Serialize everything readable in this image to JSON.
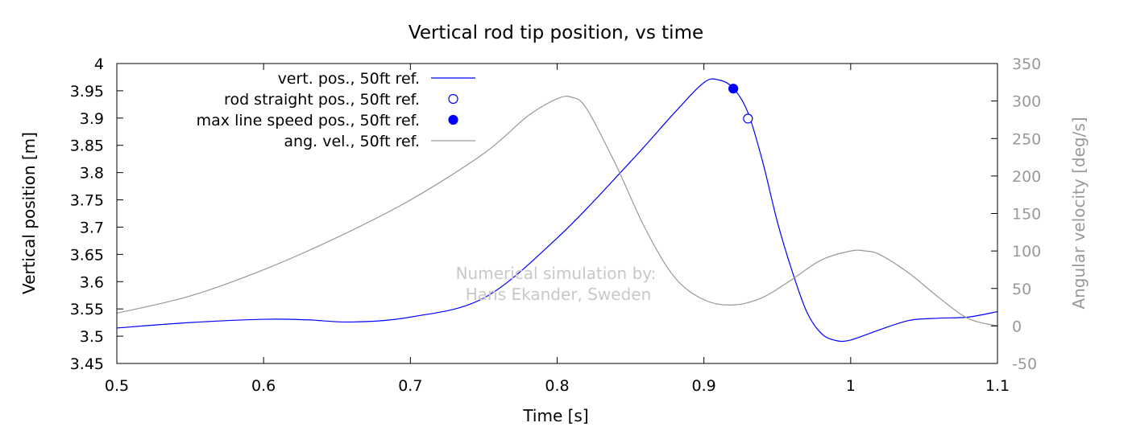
{
  "chart_data": {
    "type": "line",
    "title": "Vertical rod tip position, vs time",
    "xlabel": "Time [s]",
    "ylabel": "Vertical position [m]",
    "y2label": "Angular velocity [deg/s]",
    "xlim": [
      0.5,
      1.1
    ],
    "ylim": [
      3.45,
      4.0
    ],
    "y2lim": [
      -50,
      350
    ],
    "xticks": [
      "0.5",
      "0.6",
      "0.7",
      "0.8",
      "0.9",
      "1",
      "1.1"
    ],
    "yticks": [
      "3.45",
      "3.5",
      "3.55",
      "3.6",
      "3.65",
      "3.7",
      "3.75",
      "3.8",
      "3.85",
      "3.9",
      "3.95",
      "4"
    ],
    "y2ticks": [
      "-50",
      "0",
      "50",
      "100",
      "150",
      "200",
      "250",
      "300",
      "350"
    ],
    "grid": false,
    "legend_position": "top-left",
    "annotation": [
      "Numerical simulation by:",
      "Hans Ekander, Sweden"
    ],
    "series": [
      {
        "name": "vert. pos., 50ft ref.",
        "axis": "left",
        "color": "#0000ff",
        "style": "line",
        "x": [
          0.5,
          0.55,
          0.6,
          0.63,
          0.66,
          0.7,
          0.75,
          0.8,
          0.85,
          0.88,
          0.9,
          0.91,
          0.92,
          0.93,
          0.94,
          0.95,
          0.96,
          0.97,
          0.98,
          0.99,
          1.0,
          1.02,
          1.04,
          1.06,
          1.08,
          1.1
        ],
        "y": [
          3.515,
          3.525,
          3.531,
          3.53,
          3.526,
          3.535,
          3.57,
          3.68,
          3.82,
          3.91,
          3.965,
          3.97,
          3.955,
          3.91,
          3.82,
          3.71,
          3.62,
          3.545,
          3.505,
          3.492,
          3.493,
          3.512,
          3.529,
          3.533,
          3.535,
          3.545
        ]
      },
      {
        "name": "rod straight pos., 50ft ref.",
        "axis": "left",
        "color": "#0000ff",
        "style": "open-circle",
        "x": [
          0.93
        ],
        "y": [
          3.899
        ]
      },
      {
        "name": "max line speed pos., 50ft ref.",
        "axis": "left",
        "color": "#0000ff",
        "style": "filled-circle",
        "x": [
          0.92
        ],
        "y": [
          3.954
        ]
      },
      {
        "name": "ang. vel., 50ft ref.",
        "axis": "right",
        "color": "#999999",
        "style": "line",
        "x": [
          0.5,
          0.55,
          0.6,
          0.65,
          0.7,
          0.75,
          0.78,
          0.8,
          0.81,
          0.82,
          0.84,
          0.86,
          0.88,
          0.9,
          0.92,
          0.94,
          0.96,
          0.98,
          1.0,
          1.01,
          1.02,
          1.04,
          1.06,
          1.08,
          1.1
        ],
        "y": [
          17,
          40,
          75,
          118,
          168,
          230,
          280,
          303,
          305,
          290,
          215,
          130,
          65,
          35,
          28,
          38,
          62,
          88,
          100,
          100,
          95,
          70,
          38,
          10,
          0
        ]
      }
    ]
  }
}
